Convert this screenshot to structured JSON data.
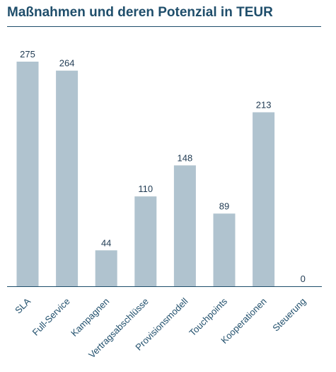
{
  "chart_data": {
    "type": "bar",
    "title": "Maßnahmen und deren Potenzial in TEUR",
    "categories": [
      "SLA",
      "Full-Service",
      "Kampagnen",
      "Vertragsabschlüsse",
      "Provisionsmodell",
      "Touchpoints",
      "Kooperationen",
      "Steuerung"
    ],
    "values": [
      275,
      264,
      44,
      110,
      148,
      89,
      213,
      0
    ],
    "xlabel": "",
    "ylabel": "",
    "ylim": [
      0,
      300
    ],
    "grid": false,
    "legend": "none",
    "colors": {
      "bar": "#b0c3cf",
      "axis": "#1f4e6b",
      "title": "#1f4e6b",
      "value_label": "#1f3a52"
    }
  }
}
